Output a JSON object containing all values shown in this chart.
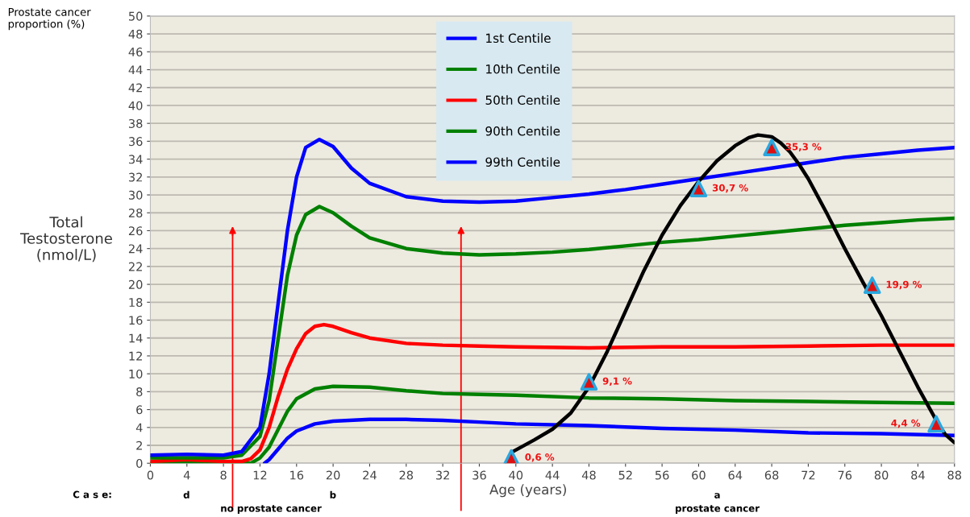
{
  "chart_data": {
    "type": "line",
    "xlabel": "Age (years)",
    "ylabel": "Total\nTestosterone\n(nmol/L)",
    "xlim": [
      0,
      88
    ],
    "xticks": [
      0,
      4,
      8,
      12,
      16,
      20,
      24,
      28,
      32,
      36,
      40,
      44,
      48,
      52,
      56,
      60,
      64,
      68,
      72,
      76,
      80,
      84,
      88
    ],
    "ylim": [
      0,
      50
    ],
    "yticks": [
      0,
      2,
      4,
      6,
      8,
      10,
      12,
      14,
      16,
      18,
      20,
      22,
      24,
      26,
      28,
      30,
      32,
      34,
      36,
      38,
      40,
      42,
      44,
      46,
      48,
      50
    ],
    "grid": "y",
    "legend": "top",
    "line_style": "solid",
    "series": [
      {
        "name": "1st Centile",
        "color": "#0000ff",
        "x": [
          12.5,
          13,
          14,
          15,
          16,
          18,
          20,
          24,
          28,
          32,
          36,
          40,
          48,
          56,
          64,
          72,
          80,
          88
        ],
        "values": [
          0,
          0.4,
          1.6,
          2.8,
          3.6,
          4.4,
          4.7,
          4.9,
          4.9,
          4.8,
          4.6,
          4.4,
          4.2,
          3.9,
          3.7,
          3.4,
          3.3,
          3.1
        ]
      },
      {
        "name": "10th Centile",
        "color": "#008000",
        "x": [
          0,
          4,
          8,
          11,
          12,
          13,
          14,
          15,
          16,
          18,
          20,
          24,
          28,
          32,
          36,
          40,
          48,
          56,
          64,
          72,
          80,
          88
        ],
        "values": [
          0,
          0.1,
          0.1,
          0,
          0.6,
          1.8,
          3.8,
          5.8,
          7.2,
          8.3,
          8.6,
          8.5,
          8.1,
          7.8,
          7.7,
          7.6,
          7.3,
          7.2,
          7.0,
          6.9,
          6.8,
          6.7
        ]
      },
      {
        "name": "50th Centile",
        "color": "#ff0000",
        "x": [
          0,
          4,
          8,
          10,
          11,
          12,
          13,
          14,
          15,
          16,
          17,
          18,
          19,
          20,
          22,
          24,
          28,
          32,
          36,
          40,
          48,
          56,
          64,
          72,
          80,
          88
        ],
        "values": [
          0.2,
          0.4,
          0.2,
          0.2,
          0.5,
          1.5,
          4,
          7.5,
          10.5,
          12.8,
          14.5,
          15.3,
          15.5,
          15.3,
          14.6,
          14,
          13.4,
          13.2,
          13.1,
          13,
          12.9,
          13,
          13,
          13.1,
          13.2,
          13.2
        ]
      },
      {
        "name": "90th Centile",
        "color": "#008000",
        "x": [
          0,
          8,
          10,
          12,
          13,
          14,
          15,
          16,
          17,
          18.5,
          20,
          22,
          24,
          28,
          32,
          36,
          40,
          44,
          48,
          52,
          56,
          60,
          64,
          68,
          72,
          76,
          80,
          84,
          88
        ],
        "values": [
          0.6,
          0.6,
          0.9,
          3,
          7,
          14,
          21,
          25.5,
          27.8,
          28.7,
          28,
          26.5,
          25.2,
          24,
          23.5,
          23.3,
          23.4,
          23.6,
          23.9,
          24.3,
          24.7,
          25,
          25.4,
          25.8,
          26.2,
          26.6,
          26.9,
          27.2,
          27.4
        ]
      },
      {
        "name": "99th Centile",
        "color": "#0000ff",
        "x": [
          0,
          4,
          8,
          10,
          12,
          13,
          14,
          15,
          16,
          17,
          18.5,
          20,
          22,
          24,
          28,
          32,
          36,
          40,
          44,
          48,
          52,
          56,
          60,
          64,
          68,
          72,
          76,
          80,
          84,
          88
        ],
        "values": [
          0.9,
          1.0,
          0.9,
          1.3,
          4,
          10,
          18,
          26,
          32,
          35.3,
          36.2,
          35.4,
          33,
          31.3,
          29.8,
          29.3,
          29.2,
          29.3,
          29.7,
          30.1,
          30.6,
          31.2,
          31.8,
          32.4,
          33,
          33.6,
          34.2,
          34.6,
          35,
          35.3
        ]
      },
      {
        "color": "#000000",
        "x": [
          39.5,
          42,
          44,
          46,
          48,
          50,
          52,
          54,
          56,
          58,
          60,
          62,
          64,
          65.5,
          66.5,
          68,
          69,
          70,
          71,
          72,
          74,
          76,
          78,
          80,
          82,
          84,
          86,
          87,
          88
        ],
        "values": [
          1.2,
          2.6,
          3.8,
          5.6,
          8.5,
          12.5,
          17,
          21.5,
          25.5,
          28.8,
          31.5,
          33.8,
          35.5,
          36.4,
          36.7,
          36.5,
          35.8,
          34.8,
          33.4,
          31.8,
          28,
          24,
          20.2,
          16.5,
          12.5,
          8.5,
          4.8,
          3.2,
          2.3
        ]
      },
      {
        "type": "scatter",
        "marker": "triangle",
        "color": "#29a8e0",
        "x": [
          39.5,
          48,
          60,
          68,
          79,
          86
        ],
        "values": [
          0.6,
          9.1,
          30.7,
          35.3,
          19.9,
          4.4
        ],
        "value_labels": [
          "0,6 %",
          "9,1 %",
          "30,7 %",
          "35,3 %",
          "19,9 %",
          "4,4 %"
        ]
      }
    ],
    "ref_lines": [
      {
        "axis": "x",
        "value": 9,
        "color": "#ff0000"
      },
      {
        "axis": "x",
        "value": 34,
        "color": "#ff0000"
      }
    ],
    "annotations": [
      "Prostate cancer\nproportion (%)",
      "C a s e:",
      "d",
      "b",
      "a",
      "no prostate cancer",
      "prostate cancer"
    ]
  }
}
